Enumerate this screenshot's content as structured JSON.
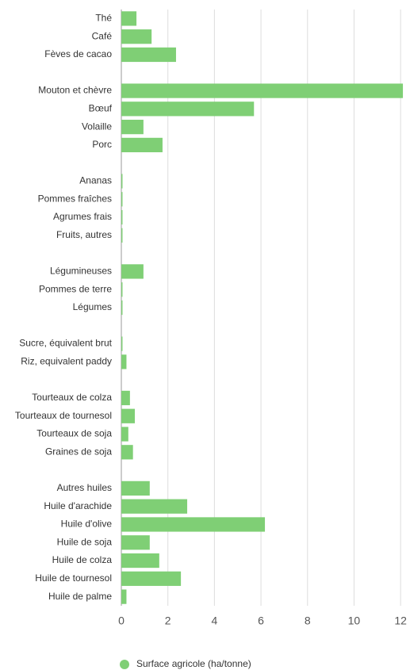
{
  "chart_data": {
    "type": "bar",
    "orientation": "horizontal",
    "categories": [
      "Thé",
      "Café",
      "Fèves de cacao",
      null,
      "Mouton et chèvre",
      "Bœuf",
      "Volaille",
      "Porc",
      null,
      "Ananas",
      "Pommes fraîches",
      "Agrumes frais",
      "Fruits, autres",
      null,
      "Légumineuses",
      "Pommes de terre",
      "Légumes",
      null,
      "Sucre, équivalent brut",
      "Riz, equivalent paddy",
      null,
      "Tourteaux de colza",
      "Tourteaux de tournesol",
      "Tourteaux de soja",
      "Graines de soja",
      null,
      "Autres huiles",
      "Huile d'arachide",
      "Huile d'olive",
      "Huile de soja",
      "Huile de colza",
      "Huile de tournesol",
      "Huile de palme"
    ],
    "series": [
      {
        "name": "Surface agricole (ha/tonne)",
        "color": "#7fcf75",
        "values": [
          0.65,
          1.3,
          2.35,
          null,
          12.1,
          5.7,
          0.95,
          1.77,
          null,
          0.05,
          0.05,
          0.05,
          0.05,
          null,
          0.95,
          0.05,
          0.05,
          null,
          0.05,
          0.22,
          null,
          0.37,
          0.58,
          0.3,
          0.5,
          null,
          1.22,
          2.83,
          6.17,
          1.22,
          1.63,
          2.56,
          0.22
        ]
      }
    ],
    "xlim": [
      0,
      12.2
    ],
    "xticks": [
      0,
      2,
      4,
      6,
      8,
      10,
      12
    ],
    "grid": true,
    "legend": "bottom"
  }
}
